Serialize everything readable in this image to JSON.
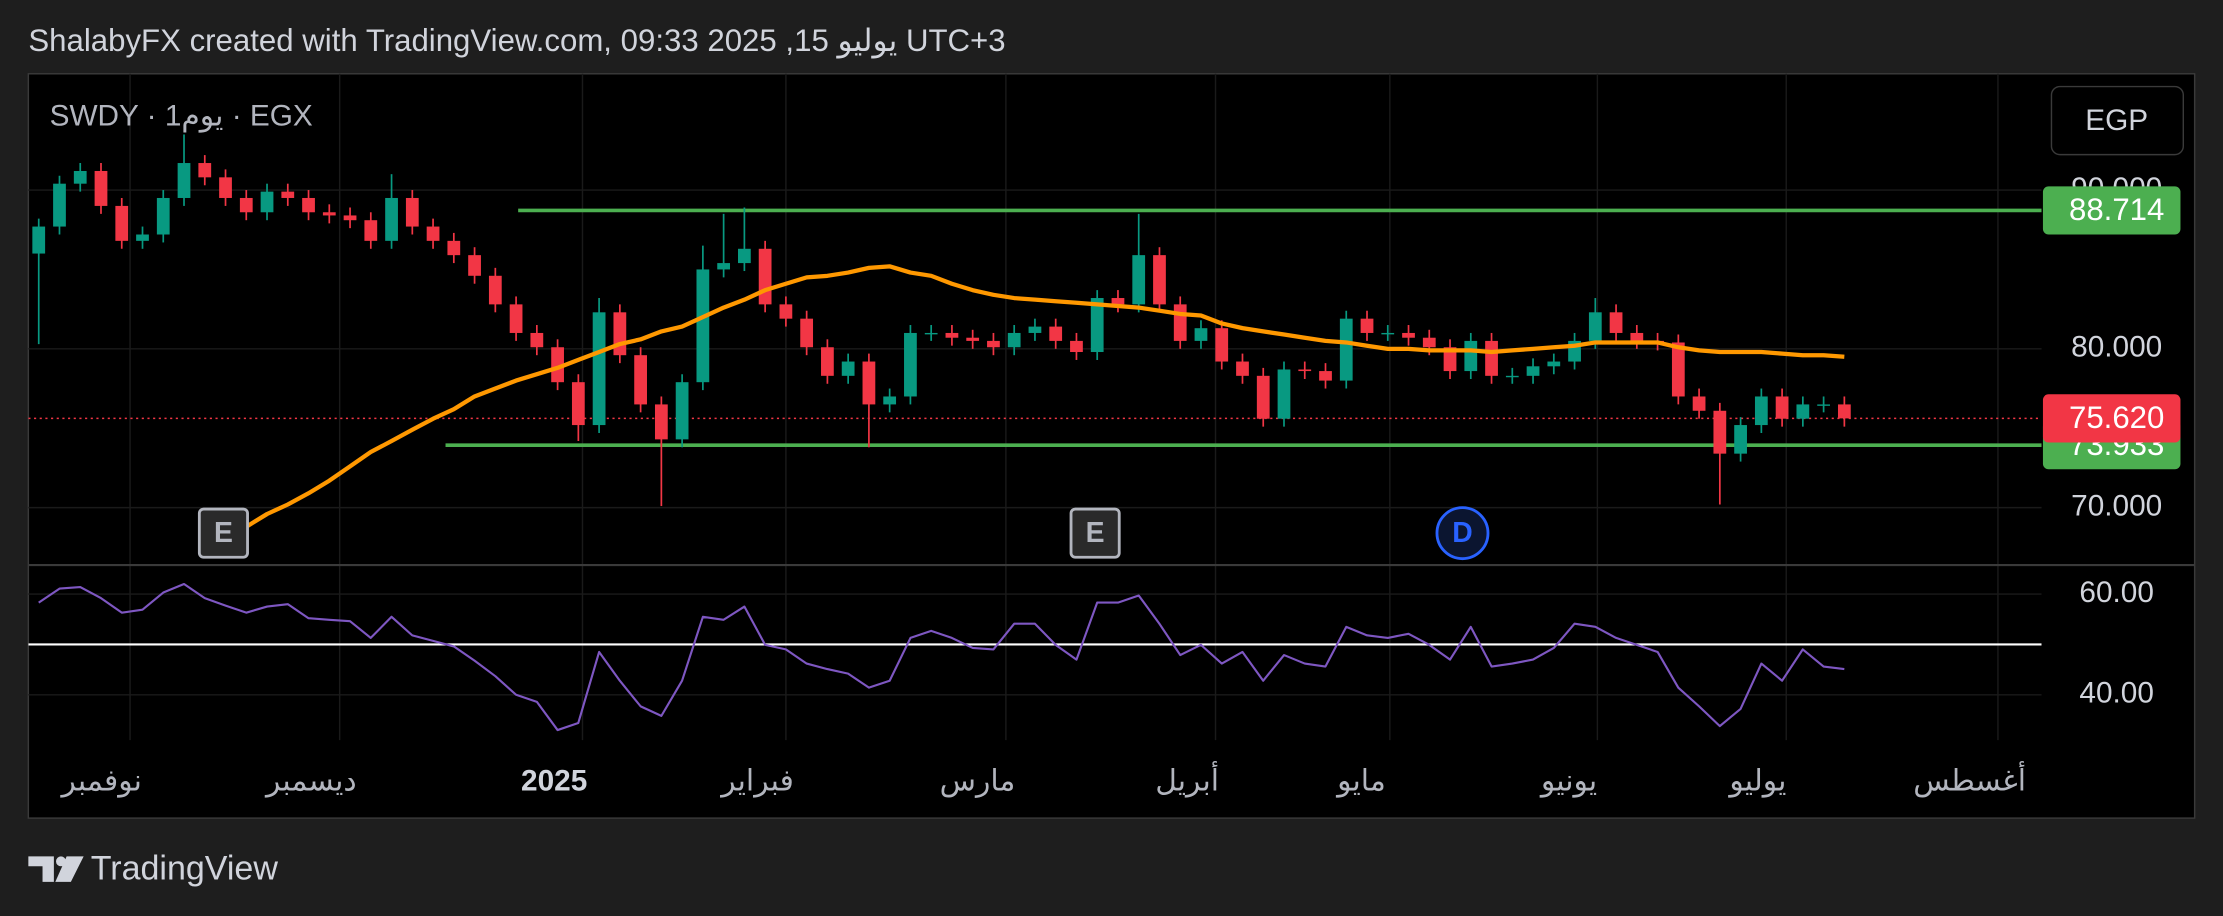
{
  "header": {
    "title": "ShalabyFX created with TradingView.com, يوليو 15, 2025 09:33 UTC+3"
  },
  "footer": {
    "brand": "TradingView"
  },
  "chart_data": {
    "type": "candlestick",
    "symbol": "SWDY · 1يوم · EGX",
    "currency": "EGP",
    "xlim": [
      -0.5,
      96.5
    ],
    "xticks": [
      {
        "value": 4.4,
        "label": "نوفمبر"
      },
      {
        "value": 14.5,
        "label": "ديسمبر"
      },
      {
        "value": 26.2,
        "label": "2025"
      },
      {
        "value": 36.0,
        "label": "فبراير"
      },
      {
        "value": 46.6,
        "label": "مارس"
      },
      {
        "value": 56.7,
        "label": "أبريل"
      },
      {
        "value": 65.1,
        "label": "مايو"
      },
      {
        "value": 75.1,
        "label": "يونيو"
      },
      {
        "value": 84.2,
        "label": "يوليو"
      },
      {
        "value": 94.4,
        "label": "أغسطس"
      }
    ],
    "ylim": [
      66.43,
      97.32
    ],
    "yticks": [
      {
        "value": 70,
        "label": "70.000"
      },
      {
        "value": 80,
        "label": "80.000"
      },
      {
        "value": 90,
        "label": "90.000"
      }
    ],
    "grid": true,
    "up_color": "#089981",
    "down_color": "#f23645",
    "open": [
      86,
      87.7,
      90.4,
      91.2,
      89,
      86.8,
      87.2,
      89.5,
      91.7,
      90.8,
      89.5,
      88.6,
      89.9,
      89.5,
      88.6,
      88.4,
      88.1,
      86.8,
      89.5,
      87.7,
      86.8,
      85.9,
      84.6,
      82.8,
      81,
      80.1,
      77.9,
      75.2,
      82.3,
      79.6,
      76.5,
      74.3,
      77.9,
      85,
      85.4,
      86.3,
      82.8,
      81.9,
      80.1,
      78.3,
      79.2,
      76.5,
      77,
      81,
      81,
      80.7,
      80.5,
      80.1,
      81,
      81.4,
      80.5,
      79.8,
      83.2,
      82.8,
      85.9,
      82.8,
      80.5,
      81.3,
      79.2,
      78.3,
      75.6,
      78.7,
      78.6,
      78,
      81.9,
      81,
      81,
      80.7,
      80.1,
      78.6,
      80.5,
      78.3,
      78.3,
      78.9,
      79.2,
      80.5,
      82.3,
      81,
      80.5,
      80.4,
      77,
      76.1,
      73.4,
      75.2,
      77,
      75.6,
      76.5,
      76.5
    ],
    "high": [
      88.2,
      90.9,
      91.7,
      91.7,
      89.5,
      87.7,
      90,
      93.5,
      92.2,
      91.3,
      90,
      90.4,
      90.4,
      90,
      89.1,
      88.9,
      88.6,
      91,
      90,
      88.2,
      87.3,
      86.4,
      85.1,
      83.3,
      81.5,
      80.6,
      78.4,
      83.2,
      82.8,
      80.1,
      77,
      78.4,
      86.5,
      88.5,
      88.9,
      86.8,
      83.3,
      82.4,
      80.6,
      79.7,
      79.7,
      77.5,
      81.5,
      81.5,
      81.5,
      81.2,
      81,
      81.5,
      81.9,
      81.9,
      81,
      83.7,
      83.7,
      88.5,
      86.4,
      83.3,
      81.8,
      81.8,
      79.7,
      78.8,
      79.2,
      79.2,
      79.1,
      82.4,
      82.4,
      81.5,
      81.5,
      81.2,
      80.6,
      81,
      81,
      78.8,
      79.4,
      79.7,
      81,
      83.2,
      82.8,
      81.5,
      81,
      80.9,
      77.5,
      76.6,
      75.7,
      77.5,
      77.5,
      77,
      77,
      77
    ],
    "low": [
      80.3,
      87.2,
      89.9,
      88.5,
      86.3,
      86.3,
      86.7,
      89,
      90.3,
      89,
      88.1,
      88.1,
      89,
      88.1,
      87.9,
      87.6,
      86.3,
      86.3,
      87.2,
      86.3,
      85.4,
      84.1,
      82.3,
      80.5,
      79.6,
      77.4,
      74.2,
      74.7,
      79.1,
      76,
      70.1,
      73.8,
      77.4,
      84.5,
      84.9,
      82.3,
      81.4,
      79.6,
      77.8,
      77.8,
      73.8,
      76,
      76.5,
      80.5,
      80.2,
      80,
      79.6,
      79.6,
      80.5,
      80,
      79.3,
      79.3,
      82.3,
      82.3,
      82.3,
      80,
      80,
      78.7,
      77.8,
      75.1,
      75.1,
      78.1,
      77.5,
      77.5,
      80.5,
      80.5,
      80.2,
      79.6,
      78.1,
      78.1,
      77.8,
      77.8,
      77.8,
      78.4,
      78.7,
      80,
      80.5,
      80,
      79.9,
      76.5,
      75.6,
      70.2,
      72.9,
      74.7,
      75.1,
      75.1,
      76,
      75.1
    ],
    "close": [
      87.7,
      90.4,
      91.2,
      89,
      86.8,
      87.2,
      89.5,
      91.7,
      90.8,
      89.5,
      88.6,
      89.9,
      89.5,
      88.6,
      88.4,
      88.1,
      86.8,
      89.5,
      87.7,
      86.8,
      85.9,
      84.6,
      82.8,
      81,
      80.1,
      77.9,
      75.2,
      82.3,
      79.6,
      76.5,
      74.3,
      77.9,
      85,
      85.4,
      86.3,
      82.8,
      81.9,
      80.1,
      78.3,
      79.2,
      76.5,
      77,
      81,
      81,
      80.7,
      80.5,
      80.1,
      81,
      81.4,
      80.5,
      79.8,
      83.2,
      82.8,
      85.9,
      82.8,
      80.5,
      81.3,
      79.2,
      78.3,
      75.6,
      78.7,
      78.6,
      78,
      81.9,
      81,
      81,
      80.7,
      80.1,
      78.6,
      80.5,
      78.3,
      78.3,
      78.9,
      79.2,
      80.5,
      82.3,
      81,
      80.5,
      80.4,
      77,
      76.1,
      73.4,
      75.2,
      77,
      75.6,
      76.5,
      76.5,
      75.62
    ],
    "sma": {
      "color": "#ff9800",
      "values": [
        null,
        null,
        null,
        null,
        null,
        null,
        null,
        null,
        null,
        67.9,
        68.8,
        69.6,
        70.2,
        70.9,
        71.7,
        72.6,
        73.5,
        74.2,
        74.9,
        75.6,
        76.2,
        77,
        77.5,
        78,
        78.4,
        78.8,
        79.3,
        79.8,
        80.3,
        80.6,
        81.1,
        81.4,
        82,
        82.6,
        83.1,
        83.7,
        84.1,
        84.5,
        84.6,
        84.8,
        85.1,
        85.2,
        84.8,
        84.6,
        84.1,
        83.7,
        83.4,
        83.2,
        83.1,
        83,
        82.9,
        82.8,
        82.7,
        82.6,
        82.4,
        82.2,
        82.1,
        81.6,
        81.3,
        81.1,
        80.9,
        80.7,
        80.5,
        80.4,
        80.2,
        80,
        80,
        79.9,
        79.9,
        79.9,
        79.8,
        79.9,
        80,
        80.1,
        80.2,
        80.4,
        80.4,
        80.4,
        80.4,
        80.1,
        79.9,
        79.8,
        79.8,
        79.8,
        79.7,
        79.6,
        79.6,
        79.5
      ]
    },
    "levels": [
      {
        "value": 88.714,
        "x_start": 23.1,
        "color": "#4caf50"
      },
      {
        "value": 73.933,
        "x_start": 19.6,
        "color": "#4caf50"
      }
    ],
    "last_price": {
      "value": 75.62,
      "label": "75.620",
      "color": "#f23645"
    },
    "events": [
      {
        "x": 8.9,
        "label": "E",
        "shape": "square",
        "color": "#b2b5be"
      },
      {
        "x": 50.9,
        "label": "E",
        "shape": "square",
        "color": "#b2b5be"
      },
      {
        "x": 68.6,
        "label": "D",
        "shape": "circle",
        "color": "#2962ff"
      }
    ],
    "rsi": {
      "color": "#7e57c2",
      "ylim": [
        31,
        65.9
      ],
      "yticks": [
        {
          "value": 40,
          "label": "40.00"
        },
        {
          "value": 60,
          "label": "60.00"
        }
      ],
      "midline": 50,
      "values": [
        58.3,
        61.1,
        61.4,
        59.2,
        56.3,
        56.9,
        60.3,
        62,
        59.2,
        57.7,
        56.3,
        57.5,
        58,
        55.2,
        54.9,
        54.6,
        51.3,
        55.5,
        51.8,
        50.7,
        49.6,
        46.8,
        43.7,
        40,
        38.6,
        33,
        34.4,
        48.5,
        42.8,
        37.7,
        35.8,
        42.8,
        55.5,
        54.9,
        57.5,
        49.9,
        49,
        46.2,
        45.1,
        44.2,
        41.4,
        42.8,
        51.3,
        52.7,
        51.3,
        49.3,
        49,
        54.1,
        54.1,
        49.9,
        47,
        58.3,
        58.3,
        59.7,
        54.1,
        47.9,
        49.9,
        46.2,
        48.5,
        42.8,
        47.9,
        46.2,
        45.6,
        53.5,
        51.8,
        51.3,
        52.1,
        49.9,
        47,
        53.5,
        45.6,
        46.2,
        47,
        49.3,
        54.1,
        53.5,
        51.3,
        49.9,
        48.5,
        41.4,
        37.7,
        33.8,
        37.2,
        46.2,
        42.8,
        49,
        45.6,
        45.1
      ]
    }
  }
}
